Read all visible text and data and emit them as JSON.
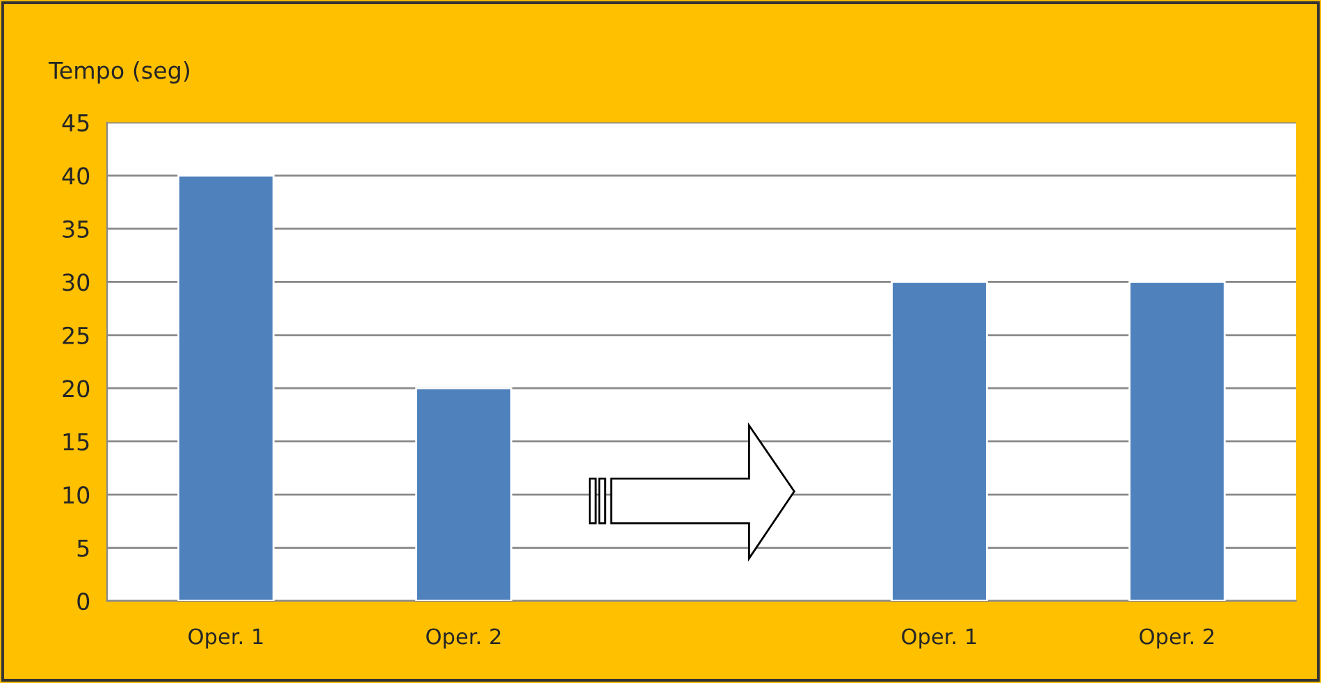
{
  "chart_data": {
    "type": "bar",
    "ylabel": "Tempo (seg)",
    "categories": [
      "Oper. 1",
      "Oper. 2",
      null,
      "Oper. 1",
      "Oper. 2"
    ],
    "values": [
      40,
      20,
      null,
      30,
      30
    ],
    "color": "#4f81bd",
    "ylim": [
      0,
      45
    ],
    "yticks": [
      0,
      5,
      10,
      15,
      20,
      25,
      30,
      35,
      40,
      45
    ],
    "grid": "y"
  }
}
